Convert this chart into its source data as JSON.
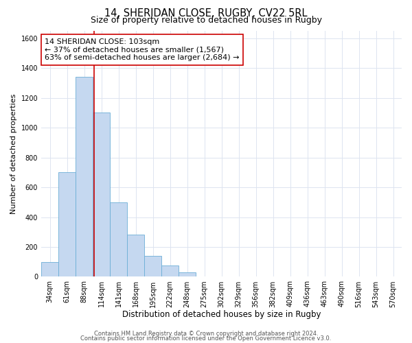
{
  "title": "14, SHERIDAN CLOSE, RUGBY, CV22 5RL",
  "subtitle": "Size of property relative to detached houses in Rugby",
  "xlabel": "Distribution of detached houses by size in Rugby",
  "ylabel": "Number of detached properties",
  "categories": [
    "34sqm",
    "61sqm",
    "88sqm",
    "114sqm",
    "141sqm",
    "168sqm",
    "195sqm",
    "222sqm",
    "248sqm",
    "275sqm",
    "302sqm",
    "329sqm",
    "356sqm",
    "382sqm",
    "409sqm",
    "436sqm",
    "463sqm",
    "490sqm",
    "516sqm",
    "543sqm",
    "570sqm"
  ],
  "values": [
    100,
    700,
    1340,
    1100,
    500,
    285,
    140,
    75,
    30,
    0,
    0,
    0,
    0,
    0,
    0,
    0,
    0,
    0,
    0,
    0,
    0
  ],
  "bar_color": "#c5d8f0",
  "bar_edge_color": "#6baed6",
  "vline_color": "#cc0000",
  "annotation_line1": "14 SHERIDAN CLOSE: 103sqm",
  "annotation_line2": "← 37% of detached houses are smaller (1,567)",
  "annotation_line3": "63% of semi-detached houses are larger (2,684) →",
  "annotation_box_color": "#ffffff",
  "annotation_box_edgecolor": "#cc0000",
  "ylim": [
    0,
    1650
  ],
  "yticks": [
    0,
    200,
    400,
    600,
    800,
    1000,
    1200,
    1400,
    1600
  ],
  "grid_color": "#dde4f0",
  "background_color": "#ffffff",
  "footer_line1": "Contains HM Land Registry data © Crown copyright and database right 2024.",
  "footer_line2": "Contains public sector information licensed under the Open Government Licence v3.0.",
  "title_fontsize": 10.5,
  "subtitle_fontsize": 9,
  "xlabel_fontsize": 8.5,
  "ylabel_fontsize": 8,
  "tick_fontsize": 7,
  "annotation_fontsize": 8,
  "footer_fontsize": 6
}
